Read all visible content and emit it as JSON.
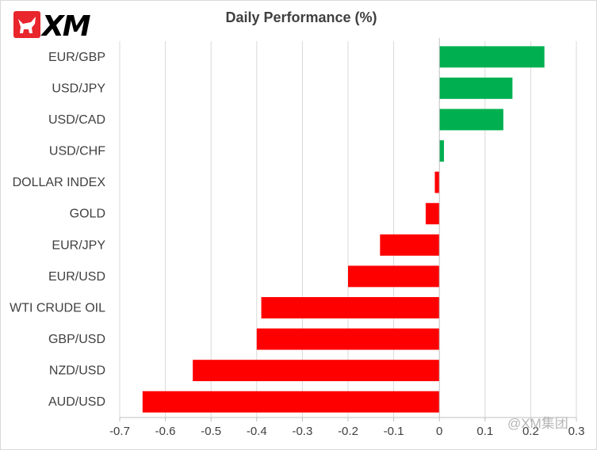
{
  "brand": {
    "logo_text": "XM",
    "logo_color": "#e8262c"
  },
  "watermark": "@XM集团",
  "chart_data": {
    "type": "bar",
    "orientation": "horizontal",
    "title": "Daily Performance (%)",
    "categories": [
      "EUR/GBP",
      "USD/JPY",
      "USD/CAD",
      "USD/CHF",
      "DOLLAR INDEX",
      "GOLD",
      "EUR/JPY",
      "EUR/USD",
      "WTI CRUDE OIL",
      "GBP/USD",
      "NZD/USD",
      "AUD/USD"
    ],
    "values": [
      0.23,
      0.16,
      0.14,
      0.01,
      -0.01,
      -0.03,
      -0.13,
      -0.2,
      -0.39,
      -0.4,
      -0.54,
      -0.65
    ],
    "xlim": [
      -0.7,
      0.3
    ],
    "xticks": [
      -0.7,
      -0.6,
      -0.5,
      -0.4,
      -0.3,
      -0.2,
      -0.1,
      0,
      0.1,
      0.2,
      0.3
    ],
    "xtick_labels": [
      "-0.7",
      "-0.6",
      "-0.5",
      "-0.4",
      "-0.3",
      "-0.2",
      "-0.1",
      "0",
      "0.1",
      "0.2",
      "0.3"
    ],
    "grid": "vertical",
    "colors": {
      "positive": "#00b050",
      "negative": "#ff0000",
      "grid": "#d9d9d9",
      "axis": "#bfbfbf"
    }
  }
}
